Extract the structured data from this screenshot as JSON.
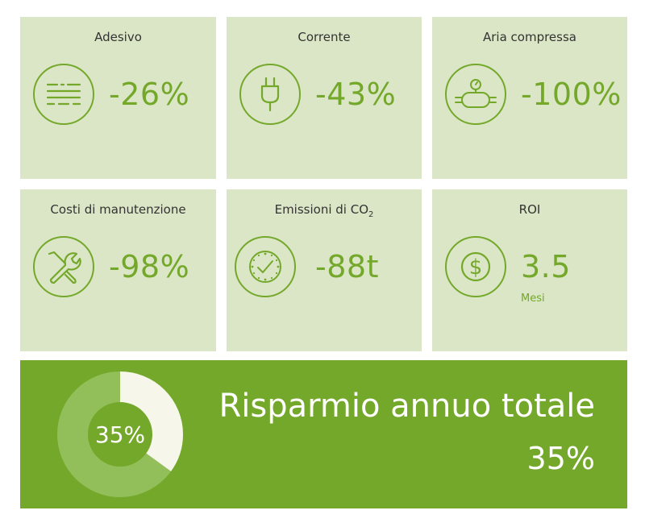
{
  "colors": {
    "accent": "#74a82a",
    "card_bg": "#dbe6c6",
    "donut_light": "#f7f6ea",
    "donut_mid": "#92bf5a"
  },
  "cards": [
    {
      "title": "Adesivo",
      "icon": "adhesive-lines-icon",
      "value": "-26%"
    },
    {
      "title": "Corrente",
      "icon": "power-plug-icon",
      "value": "-43%"
    },
    {
      "title": "Aria compressa",
      "icon": "compressed-air-tank-icon",
      "value": "-100%"
    },
    {
      "title": "Costi di manutenzione",
      "icon": "wrench-screwdriver-icon",
      "value": "-98%"
    },
    {
      "title_main": "Emissioni di CO",
      "title_sub": "2",
      "icon": "clock-check-icon",
      "value": "-88t"
    },
    {
      "title": "ROI",
      "icon": "dollar-coin-icon",
      "value": "3.5",
      "unit": "Mesi"
    }
  ],
  "summary": {
    "title": "Risparmio annuo totale",
    "value": "35%",
    "donut_label": "35%",
    "percent": 35
  }
}
